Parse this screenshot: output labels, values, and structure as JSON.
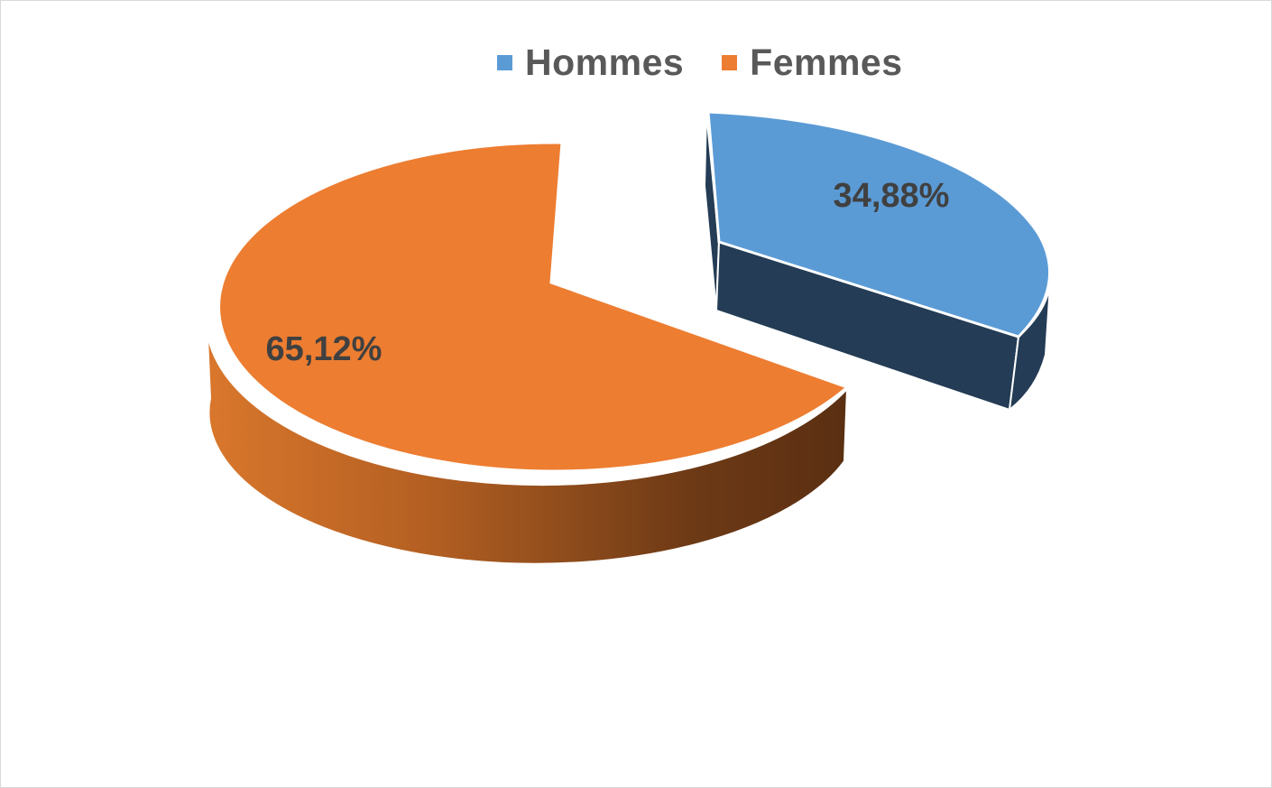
{
  "chart_data": {
    "type": "pie",
    "style": "3d-exploded",
    "legend_position": "top",
    "slices": [
      {
        "name": "Hommes",
        "value": 34.88,
        "label": "34,88%",
        "color": "#5b9bd5",
        "side_color": "#243c55"
      },
      {
        "name": "Femmes",
        "value": 65.12,
        "label": "65,12%",
        "color": "#ed7d31",
        "side_color": "#b35a1f"
      }
    ]
  }
}
